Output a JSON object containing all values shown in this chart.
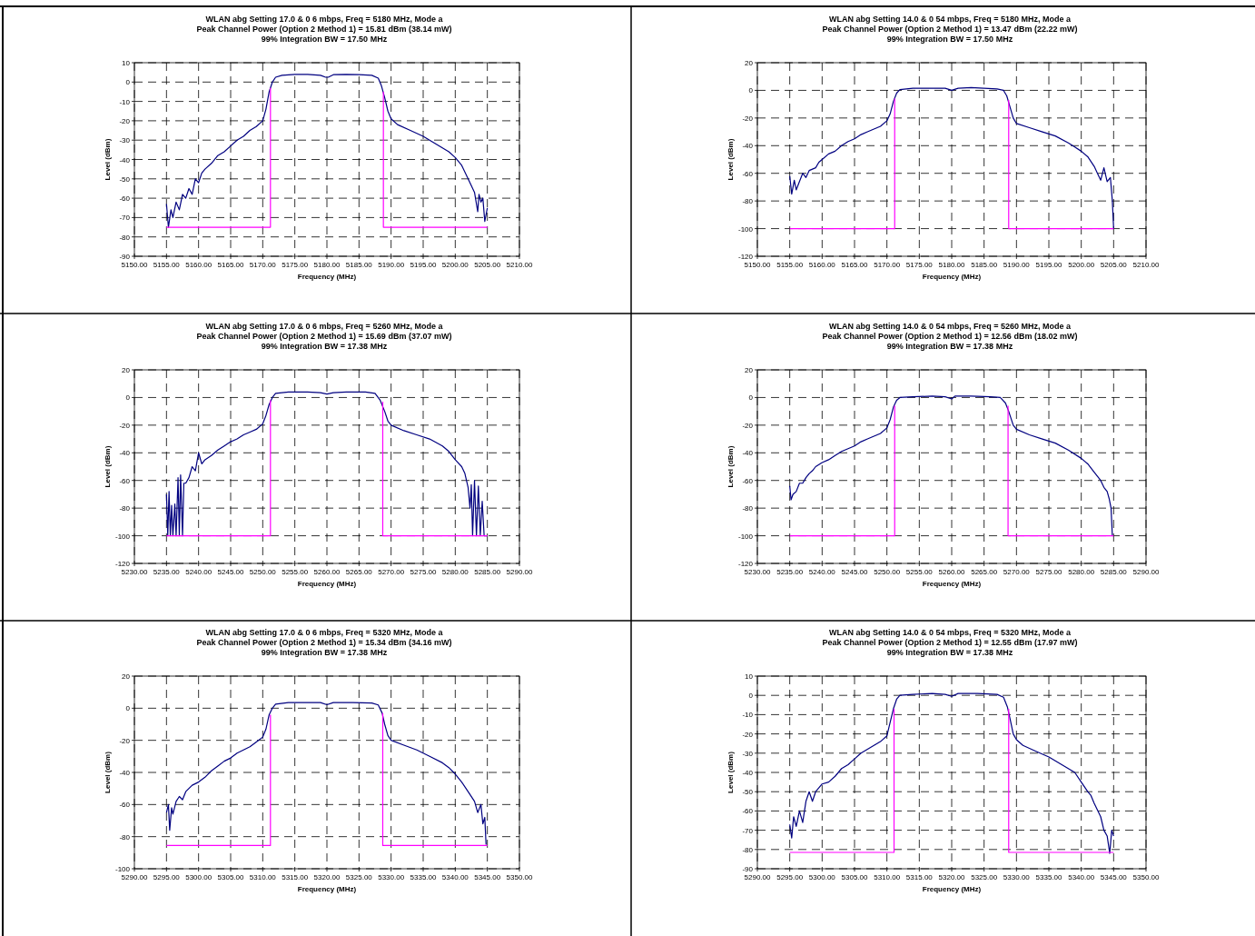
{
  "chart_data": [
    {
      "type": "line",
      "title": "WLAN abg Setting 17.0 & 0  6 mbps, Freq = 5180 MHz, Mode a",
      "subtitle": "Peak Channel Power (Option 2 Method 1) = 15.81 dBm (38.14 mW)",
      "annotations": [
        "99% Integration BW = 17.50 MHz"
      ],
      "xlabel": "Frequency (MHz)",
      "ylabel": "Level (dBm)",
      "grid": true,
      "xlim": [
        5150,
        5210
      ],
      "xticks": [
        {
          "value": 5150,
          "label": "5150.00"
        },
        {
          "value": 5155,
          "label": "5155.00"
        },
        {
          "value": 5160,
          "label": "5160.00"
        },
        {
          "value": 5165,
          "label": "5165.00"
        },
        {
          "value": 5170,
          "label": "5170.00"
        },
        {
          "value": 5175,
          "label": "5175.00"
        },
        {
          "value": 5180,
          "label": "5180.00"
        },
        {
          "value": 5185,
          "label": "5185.00"
        },
        {
          "value": 5190,
          "label": "5190.00"
        },
        {
          "value": 5195,
          "label": "5195.00"
        },
        {
          "value": 5200,
          "label": "5200.00"
        },
        {
          "value": 5205,
          "label": "5205.00"
        },
        {
          "value": 5210,
          "label": "5210.00"
        }
      ],
      "ylim": [
        -90,
        10
      ],
      "yticks": [
        -90,
        -80,
        -70,
        -60,
        -50,
        -40,
        -30,
        -20,
        -10,
        0,
        10
      ],
      "series": [
        {
          "color": "#000080",
          "x": [
            5155,
            5155.3,
            5155.7,
            5156,
            5156.5,
            5157,
            5157.5,
            5158,
            5158.5,
            5159,
            5159.5,
            5160,
            5160.5,
            5161,
            5162,
            5163,
            5164,
            5165,
            5166,
            5167,
            5168,
            5169,
            5170,
            5170.5,
            5171,
            5171.5,
            5172,
            5173,
            5175,
            5177,
            5179,
            5179.8,
            5180.2,
            5181,
            5183,
            5185,
            5187,
            5188,
            5188.5,
            5189,
            5189.5,
            5190,
            5191,
            5193,
            5195,
            5197,
            5199,
            5200,
            5201,
            5202,
            5203,
            5203.5,
            5203.7,
            5204,
            5204.3,
            5204.6,
            5205
          ],
          "values": [
            -63,
            -75,
            -66,
            -70,
            -62,
            -66,
            -58,
            -60,
            -55,
            -58,
            -50,
            -52,
            -47,
            -45,
            -42,
            -38,
            -36,
            -33,
            -30,
            -28,
            -25,
            -23,
            -20,
            -14,
            -5,
            0,
            2.5,
            3.5,
            4,
            4,
            3.5,
            2.5,
            2.5,
            3.8,
            4,
            3.8,
            3.5,
            2,
            -2,
            -8,
            -15,
            -19,
            -22,
            -25,
            -28,
            -32,
            -36,
            -39,
            -43,
            -50,
            -57,
            -67,
            -58,
            -62,
            -60,
            -72,
            -65
          ]
        },
        {
          "color": "#ff00ff",
          "x": [
            5155,
            5171.2,
            5171.2,
            5180,
            5188.8,
            5188.8,
            5205
          ],
          "values": [
            -75,
            -75,
            -3,
            null,
            -5,
            -75,
            -75
          ]
        }
      ]
    },
    {
      "type": "line",
      "title": "WLAN abg Setting 14.0 & 0  54 mbps, Freq = 5180 MHz, Mode a",
      "subtitle": "Peak Channel Power (Option 2 Method 1) = 13.47 dBm (22.22 mW)",
      "annotations": [
        "99% Integration BW = 17.50 MHz"
      ],
      "xlabel": "Frequency (MHz)",
      "ylabel": "Level (dBm)",
      "grid": true,
      "xlim": [
        5150,
        5210
      ],
      "xticks": [
        {
          "value": 5150,
          "label": "5150.00"
        },
        {
          "value": 5155,
          "label": "5155.00"
        },
        {
          "value": 5160,
          "label": "5160.00"
        },
        {
          "value": 5165,
          "label": "5165.00"
        },
        {
          "value": 5170,
          "label": "5170.00"
        },
        {
          "value": 5175,
          "label": "5175.00"
        },
        {
          "value": 5180,
          "label": "5180.00"
        },
        {
          "value": 5185,
          "label": "5185.00"
        },
        {
          "value": 5190,
          "label": "5190.00"
        },
        {
          "value": 5195,
          "label": "5195.00"
        },
        {
          "value": 5200,
          "label": "5200.00"
        },
        {
          "value": 5205,
          "label": "5205.00"
        },
        {
          "value": 5210,
          "label": "5210.00"
        }
      ],
      "ylim": [
        -120,
        20
      ],
      "yticks": [
        -120,
        -100,
        -80,
        -60,
        -40,
        -20,
        0,
        20
      ],
      "series": [
        {
          "color": "#000080",
          "x": [
            5155,
            5155.3,
            5155.7,
            5156,
            5156.5,
            5157,
            5157.5,
            5158,
            5159,
            5159.5,
            5160,
            5161,
            5162,
            5163,
            5164,
            5165,
            5166,
            5167,
            5168,
            5169,
            5170,
            5170.5,
            5171,
            5171.5,
            5172,
            5174,
            5177,
            5179,
            5180,
            5181,
            5183,
            5185,
            5187,
            5188,
            5188.5,
            5189,
            5189.5,
            5190,
            5192,
            5194,
            5196,
            5198,
            5199,
            5200,
            5201,
            5202,
            5202.5,
            5203,
            5203.5,
            5204,
            5204.5,
            5204.8,
            5205
          ],
          "values": [
            -62,
            -75,
            -65,
            -72,
            -66,
            -60,
            -63,
            -58,
            -56,
            -52,
            -50,
            -46,
            -44,
            -40,
            -37,
            -35,
            -32,
            -30,
            -28,
            -26,
            -22,
            -17,
            -8,
            -2,
            0.5,
            1.5,
            1.5,
            1.5,
            0,
            1.5,
            2,
            1.5,
            1,
            0,
            -4,
            -12,
            -20,
            -24,
            -27,
            -30,
            -33,
            -38,
            -41,
            -44,
            -48,
            -55,
            -60,
            -65,
            -56,
            -66,
            -63,
            -80,
            -100
          ]
        },
        {
          "color": "#ff00ff",
          "x": [
            5155,
            5171.2,
            5171.2,
            5180,
            5188.8,
            5188.8,
            5205
          ],
          "values": [
            -100,
            -100,
            -6,
            null,
            -7,
            -100,
            -100
          ]
        }
      ]
    },
    {
      "type": "line",
      "title": "WLAN abg Setting 17.0 & 0  6 mbps, Freq = 5260 MHz, Mode a",
      "subtitle": "Peak Channel Power (Option 2 Method 1) = 15.69 dBm (37.07 mW)",
      "annotations": [
        "99% Integration BW = 17.38 MHz"
      ],
      "xlabel": "Frequency (MHz)",
      "ylabel": "Level (dBm)",
      "grid": true,
      "xlim": [
        5230,
        5290
      ],
      "xticks": [
        {
          "value": 5230,
          "label": "5230.00"
        },
        {
          "value": 5235,
          "label": "5235.00"
        },
        {
          "value": 5240,
          "label": "5240.00"
        },
        {
          "value": 5245,
          "label": "5245.00"
        },
        {
          "value": 5250,
          "label": "5250.00"
        },
        {
          "value": 5255,
          "label": "5255.00"
        },
        {
          "value": 5260,
          "label": "5260.00"
        },
        {
          "value": 5265,
          "label": "5265.00"
        },
        {
          "value": 5270,
          "label": "5270.00"
        },
        {
          "value": 5275,
          "label": "5275.00"
        },
        {
          "value": 5280,
          "label": "5280.00"
        },
        {
          "value": 5285,
          "label": "5285.00"
        },
        {
          "value": 5290,
          "label": "5290.00"
        }
      ],
      "ylim": [
        -120,
        20
      ],
      "yticks": [
        -120,
        -100,
        -80,
        -60,
        -40,
        -20,
        0,
        20
      ],
      "series": [
        {
          "color": "#000080",
          "x": [
            5235,
            5235.2,
            5235.4,
            5235.6,
            5235.8,
            5236,
            5236.3,
            5236.5,
            5236.8,
            5237,
            5237.2,
            5237.5,
            5237.7,
            5238,
            5238.5,
            5239,
            5239.5,
            5240,
            5240.5,
            5241,
            5242,
            5243,
            5244,
            5245,
            5246,
            5247,
            5248,
            5249,
            5250,
            5250.5,
            5251,
            5251.5,
            5252,
            5254,
            5257,
            5259,
            5260,
            5261,
            5263,
            5266,
            5267.5,
            5268.3,
            5269,
            5269.5,
            5270,
            5272,
            5274,
            5276,
            5278,
            5279,
            5280,
            5281,
            5281.5,
            5282,
            5282.3,
            5282.5,
            5282.7,
            5283,
            5283.3,
            5283.6,
            5283.9,
            5284.2,
            5284.5,
            5285
          ],
          "values": [
            -70,
            -100,
            -68,
            -100,
            -78,
            -100,
            -77,
            -100,
            -58,
            -100,
            -56,
            -100,
            -62,
            -62,
            -58,
            -50,
            -53,
            -40,
            -48,
            -45,
            -42,
            -38,
            -35,
            -32,
            -30,
            -27,
            -25,
            -23,
            -19,
            -13,
            -5,
            0,
            3,
            4,
            4,
            3.5,
            2.5,
            3.5,
            4,
            4,
            3,
            -2,
            -10,
            -17,
            -20,
            -24,
            -27,
            -30,
            -35,
            -39,
            -45,
            -50,
            -55,
            -65,
            -80,
            -63,
            -100,
            -60,
            -100,
            -64,
            -100,
            -75,
            -100,
            -100
          ]
        },
        {
          "color": "#ff00ff",
          "x": [
            5235,
            5251.2,
            5251.2,
            5260,
            5268.7,
            5268.7,
            5285
          ],
          "values": [
            -100,
            -100,
            -2,
            null,
            -3,
            -100,
            -100
          ]
        }
      ]
    },
    {
      "type": "line",
      "title": "WLAN abg Setting 14.0 & 0  54 mbps, Freq = 5260 MHz, Mode a",
      "subtitle": "Peak Channel Power (Option 2 Method 1) = 12.56 dBm (18.02 mW)",
      "annotations": [
        "99% Integration BW = 17.38 MHz"
      ],
      "xlabel": "Frequency (MHz)",
      "ylabel": "Level (dBm)",
      "grid": true,
      "xlim": [
        5230,
        5290
      ],
      "xticks": [
        {
          "value": 5230,
          "label": "5230.00"
        },
        {
          "value": 5235,
          "label": "5235.00"
        },
        {
          "value": 5240,
          "label": "5240.00"
        },
        {
          "value": 5245,
          "label": "5245.00"
        },
        {
          "value": 5250,
          "label": "5250.00"
        },
        {
          "value": 5255,
          "label": "5255.00"
        },
        {
          "value": 5260,
          "label": "5260.00"
        },
        {
          "value": 5265,
          "label": "5265.00"
        },
        {
          "value": 5270,
          "label": "5270.00"
        },
        {
          "value": 5275,
          "label": "5275.00"
        },
        {
          "value": 5280,
          "label": "5280.00"
        },
        {
          "value": 5285,
          "label": "5285.00"
        },
        {
          "value": 5290,
          "label": "5290.00"
        }
      ],
      "ylim": [
        -120,
        20
      ],
      "yticks": [
        -120,
        -100,
        -80,
        -60,
        -40,
        -20,
        0,
        20
      ],
      "series": [
        {
          "color": "#000080",
          "x": [
            5235,
            5235.2,
            5235.5,
            5236,
            5236.5,
            5237,
            5237.5,
            5238,
            5238.5,
            5239,
            5240,
            5241,
            5242,
            5243,
            5244,
            5245,
            5246,
            5247,
            5248,
            5249,
            5250,
            5250.5,
            5251,
            5251.5,
            5252,
            5254,
            5257,
            5259,
            5260,
            5260.5,
            5263,
            5266,
            5267.5,
            5268.3,
            5268.8,
            5269.5,
            5270,
            5272,
            5274,
            5276,
            5278,
            5280,
            5281,
            5282,
            5283,
            5283.5,
            5284,
            5284.3,
            5284.6,
            5284.8
          ],
          "values": [
            -64,
            -74,
            -70,
            -68,
            -62,
            -62,
            -58,
            -55,
            -53,
            -50,
            -47,
            -45,
            -42,
            -39,
            -37,
            -35,
            -32,
            -30,
            -28,
            -26,
            -22,
            -16,
            -7,
            -2,
            0,
            0.5,
            1,
            0.5,
            -1,
            1,
            1,
            0.5,
            0,
            -4,
            -10,
            -20,
            -23,
            -27,
            -30,
            -33,
            -38,
            -44,
            -48,
            -54,
            -60,
            -65,
            -68,
            -73,
            -80,
            -100
          ]
        },
        {
          "color": "#ff00ff",
          "x": [
            5235,
            5251.2,
            5251.2,
            5260,
            5268.7,
            5268.7,
            5285
          ],
          "values": [
            -100,
            -100,
            -6,
            null,
            -6,
            -100,
            -100
          ]
        }
      ]
    },
    {
      "type": "line",
      "title": "WLAN abg Setting 17.0 & 0  6 mbps, Freq = 5320 MHz, Mode a",
      "subtitle": "Peak Channel Power (Option 2 Method 1) = 15.34 dBm (34.16 mW)",
      "annotations": [
        "99% Integration BW = 17.38 MHz"
      ],
      "xlabel": "Frequency (MHz)",
      "ylabel": "Level (dBm)",
      "grid": true,
      "xlim": [
        5290,
        5350
      ],
      "xticks": [
        {
          "value": 5290,
          "label": "5290.00"
        },
        {
          "value": 5295,
          "label": "5295.00"
        },
        {
          "value": 5300,
          "label": "5300.00"
        },
        {
          "value": 5305,
          "label": "5305.00"
        },
        {
          "value": 5310,
          "label": "5310.00"
        },
        {
          "value": 5315,
          "label": "5315.00"
        },
        {
          "value": 5320,
          "label": "5320.00"
        },
        {
          "value": 5325,
          "label": "5325.00"
        },
        {
          "value": 5330,
          "label": "5330.00"
        },
        {
          "value": 5335,
          "label": "5335.00"
        },
        {
          "value": 5340,
          "label": "5340.00"
        },
        {
          "value": 5345,
          "label": "5345.00"
        },
        {
          "value": 5350,
          "label": "5350.00"
        }
      ],
      "ylim": [
        -100,
        20
      ],
      "yticks": [
        -100,
        -80,
        -60,
        -40,
        -20,
        0,
        20
      ],
      "series": [
        {
          "color": "#000080",
          "x": [
            5295,
            5295.3,
            5295.5,
            5295.8,
            5296,
            5296.5,
            5297,
            5297.5,
            5298,
            5299,
            5300,
            5301,
            5302,
            5303,
            5304,
            5305,
            5306,
            5307,
            5308,
            5309,
            5310,
            5310.5,
            5311,
            5311.5,
            5312,
            5314,
            5317,
            5319,
            5320,
            5321,
            5324,
            5327,
            5328,
            5328.6,
            5329,
            5329.5,
            5330,
            5332,
            5334,
            5336,
            5338,
            5339,
            5340,
            5341,
            5342,
            5343,
            5343.5,
            5344,
            5344.3,
            5344.6,
            5344.8
          ],
          "values": [
            -65,
            -60,
            -76,
            -62,
            -66,
            -58,
            -55,
            -57,
            -52,
            -48,
            -46,
            -43,
            -39,
            -36,
            -33,
            -31,
            -28,
            -26,
            -24,
            -21,
            -18,
            -13,
            -4,
            0,
            2.5,
            3.5,
            3.5,
            3.5,
            2.2,
            3.5,
            3.5,
            3.2,
            2,
            -3,
            -10,
            -17,
            -20,
            -23,
            -26,
            -30,
            -34,
            -37,
            -41,
            -46,
            -52,
            -58,
            -65,
            -60,
            -72,
            -68,
            -85
          ]
        },
        {
          "color": "#ff00ff",
          "x": [
            5295,
            5311.2,
            5311.2,
            5320,
            5328.7,
            5328.7,
            5345
          ],
          "values": [
            -85.5,
            -85.5,
            -4,
            null,
            -3,
            -85.5,
            -85.5
          ]
        }
      ]
    },
    {
      "type": "line",
      "title": "WLAN abg Setting 14.0 & 0  54 mbps, Freq = 5320 MHz, Mode a",
      "subtitle": "Peak Channel Power (Option 2 Method 1) = 12.55 dBm (17.97 mW)",
      "annotations": [
        "99% Integration BW = 17.38 MHz"
      ],
      "xlabel": "Frequency (MHz)",
      "ylabel": "Level (dBm)",
      "grid": true,
      "xlim": [
        5290,
        5350
      ],
      "xticks": [
        {
          "value": 5290,
          "label": "5290.00"
        },
        {
          "value": 5295,
          "label": "5295.00"
        },
        {
          "value": 5300,
          "label": "5300.00"
        },
        {
          "value": 5305,
          "label": "5305.00"
        },
        {
          "value": 5310,
          "label": "5310.00"
        },
        {
          "value": 5315,
          "label": "5315.00"
        },
        {
          "value": 5320,
          "label": "5320.00"
        },
        {
          "value": 5325,
          "label": "5325.00"
        },
        {
          "value": 5330,
          "label": "5330.00"
        },
        {
          "value": 5335,
          "label": "5335.00"
        },
        {
          "value": 5340,
          "label": "5340.00"
        },
        {
          "value": 5345,
          "label": "5345.00"
        },
        {
          "value": 5350,
          "label": "5350.00"
        }
      ],
      "ylim": [
        -90,
        10
      ],
      "yticks": [
        -90,
        -80,
        -70,
        -60,
        -50,
        -40,
        -30,
        -20,
        -10,
        0,
        10
      ],
      "series": [
        {
          "color": "#000080",
          "x": [
            5295,
            5295.3,
            5295.6,
            5296,
            5296.5,
            5297,
            5297.5,
            5298,
            5298.5,
            5299,
            5300,
            5301,
            5302,
            5303,
            5304,
            5305,
            5306,
            5307,
            5308,
            5309,
            5310,
            5310.5,
            5311,
            5311.5,
            5312,
            5314,
            5317,
            5319,
            5320,
            5321,
            5324,
            5327,
            5328,
            5328.6,
            5329,
            5329.5,
            5330,
            5331,
            5333,
            5335,
            5337,
            5339,
            5340,
            5341,
            5341.5,
            5342,
            5343,
            5343.5,
            5344,
            5344.4,
            5344.7,
            5345
          ],
          "values": [
            -67,
            -74,
            -63,
            -68,
            -60,
            -66,
            -55,
            -50,
            -55,
            -50,
            -46,
            -45,
            -42,
            -38,
            -36,
            -33,
            -30,
            -28,
            -26,
            -24,
            -21,
            -14,
            -7,
            -2,
            0,
            0.5,
            1,
            0.5,
            -0.5,
            1,
            1,
            0.5,
            -1,
            -6,
            -12,
            -20,
            -23,
            -26,
            -29,
            -32,
            -36,
            -40,
            -45,
            -50,
            -52,
            -56,
            -63,
            -70,
            -73,
            -82,
            -70,
            -73
          ]
        },
        {
          "color": "#ff00ff",
          "x": [
            5295,
            5311.1,
            5311.1,
            5320,
            5328.8,
            5328.8,
            5345
          ],
          "values": [
            -81.5,
            -81.5,
            -7,
            null,
            -7,
            -81.5,
            -81.5
          ]
        }
      ]
    }
  ]
}
